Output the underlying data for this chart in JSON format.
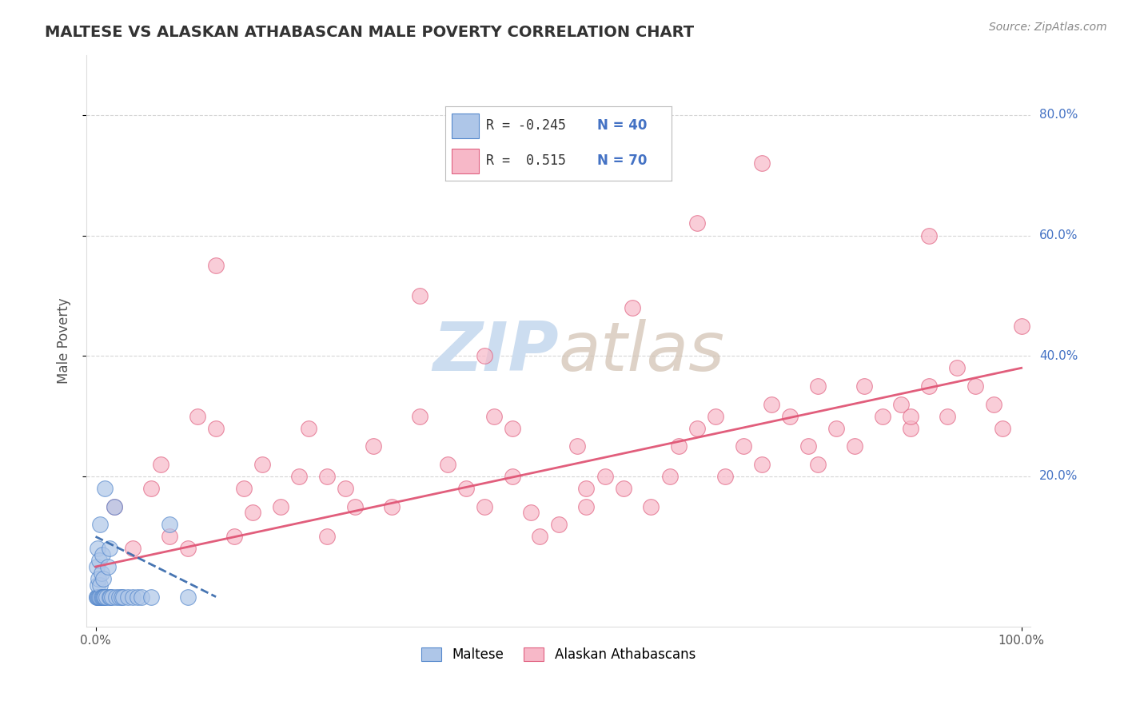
{
  "title": "MALTESE VS ALASKAN ATHABASCAN MALE POVERTY CORRELATION CHART",
  "source": "Source: ZipAtlas.com",
  "ylabel": "Male Poverty",
  "xlim": [
    -0.01,
    1.01
  ],
  "ylim": [
    -0.05,
    0.9
  ],
  "xtick_labels": [
    "0.0%",
    "100.0%"
  ],
  "xtick_vals": [
    0.0,
    1.0
  ],
  "ytick_labels": [
    "20.0%",
    "40.0%",
    "60.0%",
    "80.0%"
  ],
  "ytick_vals": [
    0.2,
    0.4,
    0.6,
    0.8
  ],
  "maltese_color": "#aec6e8",
  "athabascan_color": "#f7b8c8",
  "maltese_edge": "#5588cc",
  "athabascan_edge": "#e06080",
  "trend_maltese_color": "#3366aa",
  "trend_athabascan_color": "#e05575",
  "watermark_color": "#ccddf0",
  "legend_maltese_R": "-0.245",
  "legend_maltese_N": "40",
  "legend_athabascan_R": "0.515",
  "legend_athabascan_N": "70",
  "maltese_x": [
    0.001,
    0.001,
    0.001,
    0.002,
    0.002,
    0.002,
    0.003,
    0.003,
    0.004,
    0.004,
    0.005,
    0.005,
    0.005,
    0.006,
    0.006,
    0.007,
    0.007,
    0.008,
    0.008,
    0.009,
    0.01,
    0.01,
    0.012,
    0.013,
    0.015,
    0.015,
    0.016,
    0.018,
    0.02,
    0.022,
    0.025,
    0.028,
    0.03,
    0.035,
    0.04,
    0.045,
    0.05,
    0.06,
    0.08,
    0.1
  ],
  "maltese_y": [
    0.0,
    0.0,
    0.05,
    0.0,
    0.02,
    0.08,
    0.0,
    0.03,
    0.0,
    0.06,
    0.0,
    0.02,
    0.12,
    0.0,
    0.04,
    0.0,
    0.07,
    0.0,
    0.03,
    0.0,
    0.0,
    0.18,
    0.0,
    0.05,
    0.0,
    0.08,
    0.0,
    0.0,
    0.15,
    0.0,
    0.0,
    0.0,
    0.0,
    0.0,
    0.0,
    0.0,
    0.0,
    0.0,
    0.12,
    0.0
  ],
  "athabascan_x": [
    0.02,
    0.04,
    0.06,
    0.07,
    0.08,
    0.1,
    0.11,
    0.13,
    0.15,
    0.16,
    0.17,
    0.18,
    0.2,
    0.22,
    0.23,
    0.25,
    0.27,
    0.28,
    0.3,
    0.32,
    0.35,
    0.38,
    0.4,
    0.42,
    0.43,
    0.45,
    0.47,
    0.48,
    0.5,
    0.52,
    0.53,
    0.55,
    0.57,
    0.6,
    0.62,
    0.63,
    0.65,
    0.67,
    0.68,
    0.7,
    0.72,
    0.73,
    0.75,
    0.77,
    0.78,
    0.8,
    0.82,
    0.83,
    0.85,
    0.87,
    0.88,
    0.9,
    0.92,
    0.93,
    0.95,
    0.97,
    0.98,
    1.0,
    0.13,
    0.25,
    0.45,
    0.53,
    0.78,
    0.88,
    0.65,
    0.35,
    0.72,
    0.9,
    0.58,
    0.42
  ],
  "athabascan_y": [
    0.15,
    0.08,
    0.18,
    0.22,
    0.1,
    0.08,
    0.3,
    0.28,
    0.1,
    0.18,
    0.14,
    0.22,
    0.15,
    0.2,
    0.28,
    0.1,
    0.18,
    0.15,
    0.25,
    0.15,
    0.3,
    0.22,
    0.18,
    0.15,
    0.3,
    0.2,
    0.14,
    0.1,
    0.12,
    0.25,
    0.15,
    0.2,
    0.18,
    0.15,
    0.2,
    0.25,
    0.28,
    0.3,
    0.2,
    0.25,
    0.22,
    0.32,
    0.3,
    0.25,
    0.35,
    0.28,
    0.25,
    0.35,
    0.3,
    0.32,
    0.28,
    0.35,
    0.3,
    0.38,
    0.35,
    0.32,
    0.28,
    0.45,
    0.55,
    0.2,
    0.28,
    0.18,
    0.22,
    0.3,
    0.62,
    0.5,
    0.72,
    0.6,
    0.48,
    0.4
  ],
  "trend_athabascan_x0": 0.0,
  "trend_athabascan_y0": 0.05,
  "trend_athabascan_x1": 1.0,
  "trend_athabascan_y1": 0.38,
  "trend_maltese_x0": 0.0,
  "trend_maltese_y0": 0.1,
  "trend_maltese_x1": 0.13,
  "trend_maltese_y1": 0.0
}
